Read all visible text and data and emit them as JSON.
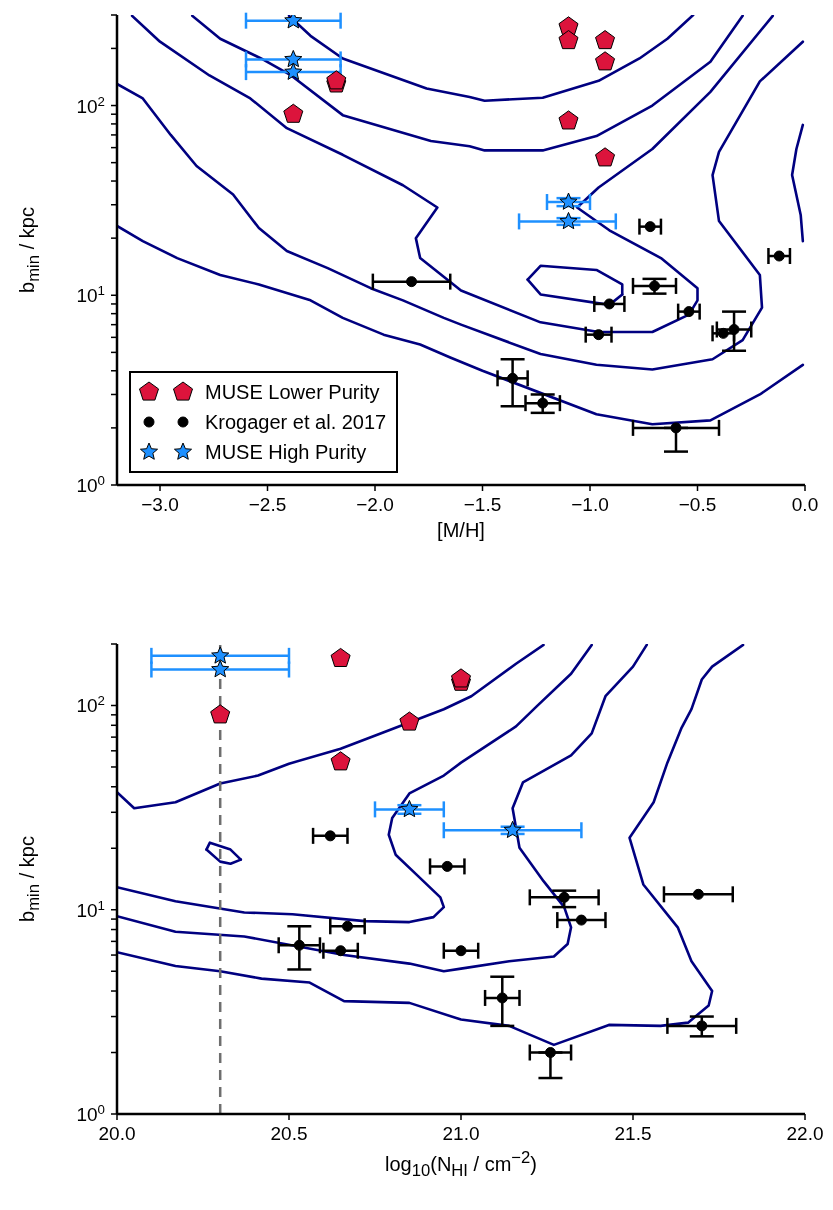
{
  "chart_data": [
    {
      "type": "scatter",
      "xlabel": "[M/H]",
      "ylabel": "b$_{min}$ / kpc",
      "log": "y",
      "legend": "bottom left",
      "xlim": [
        -3.2,
        0
      ],
      "xticks": [
        {
          "value": -3,
          "label": "−3.0"
        },
        {
          "value": -2.5,
          "label": "−2.5"
        },
        {
          "value": -2,
          "label": "−2.0"
        },
        {
          "value": -1.5,
          "label": "−1.5"
        },
        {
          "value": -1,
          "label": "−1.0"
        },
        {
          "value": -0.5,
          "label": "−0.5"
        },
        {
          "value": 0,
          "label": "0.0"
        }
      ],
      "ylim": [
        1,
        300
      ],
      "yticks": [
        {
          "value": 1,
          "label": "10$^{0}$"
        },
        {
          "value": 2,
          "label": null
        },
        {
          "value": 3,
          "label": null
        },
        {
          "value": 4,
          "label": null
        },
        {
          "value": 5,
          "label": null
        },
        {
          "value": 6,
          "label": null
        },
        {
          "value": 7,
          "label": null
        },
        {
          "value": 8,
          "label": null
        },
        {
          "value": 9,
          "label": null
        },
        {
          "value": 10,
          "label": "10$^{1}$"
        },
        {
          "value": 20,
          "label": null
        },
        {
          "value": 30,
          "label": null
        },
        {
          "value": 40,
          "label": null
        },
        {
          "value": 50,
          "label": null
        },
        {
          "value": 60,
          "label": null
        },
        {
          "value": 70,
          "label": null
        },
        {
          "value": 80,
          "label": null
        },
        {
          "value": 90,
          "label": null
        },
        {
          "value": 100,
          "label": "10$^{2}$"
        },
        {
          "value": 200,
          "label": null
        },
        {
          "value": 300,
          "label": null
        }
      ],
      "series": [
        {
          "name": "MUSE Lower Purity",
          "color": "#dc143c",
          "x": [
            -2.38,
            -2.18,
            -2.18,
            -1.1,
            -1.1,
            -0.93,
            -0.93,
            -1.1,
            -0.93
          ],
          "values": [
            90,
            130,
            135,
            260,
            220,
            220,
            170,
            83,
            53
          ]
        },
        {
          "name": "Krogager et al. 2017",
          "marker": "circle",
          "color": "#000000",
          "x": [
            -1.83,
            -0.72,
            -0.12,
            -0.7,
            -0.91,
            -0.54,
            -0.96,
            -0.38,
            -0.33,
            -1.36,
            -1.22,
            -0.6
          ],
          "values": [
            11.8,
            23,
            16.1,
            11.2,
            9,
            8.2,
            6.2,
            6.3,
            6.6,
            3.65,
            2.7,
            2.0
          ],
          "xerrors": [
            [
              -2.01,
              -1.65
            ],
            [
              -0.77,
              -0.67
            ],
            [
              -0.17,
              -0.07
            ],
            [
              -0.8,
              -0.6
            ],
            [
              -0.98,
              -0.84
            ],
            [
              -0.59,
              -0.49
            ],
            [
              -1.02,
              -0.9
            ],
            [
              -0.43,
              -0.33
            ],
            [
              -0.41,
              -0.25
            ],
            [
              -1.43,
              -1.29
            ],
            [
              -1.3,
              -1.14
            ],
            [
              -0.8,
              -0.4
            ]
          ],
          "errors": [
            null,
            null,
            null,
            [
              10.2,
              12.2
            ],
            null,
            null,
            null,
            null,
            [
              5.1,
              8.2
            ],
            [
              2.6,
              4.6
            ],
            [
              2.4,
              3.0
            ],
            [
              1.5,
              2.0
            ]
          ]
        },
        {
          "name": "MUSE High Purity",
          "marker": "star",
          "color": "#1e90ff",
          "x": [
            -2.38,
            -2.38,
            -2.38,
            -1.1,
            -1.1
          ],
          "values": [
            280,
            175,
            150,
            31,
            24.5
          ],
          "xerrors": [
            [
              -2.6,
              -2.16
            ],
            [
              -2.6,
              -2.16
            ],
            [
              -2.6,
              -2.16
            ],
            [
              -1.2,
              -1.0
            ],
            [
              -1.33,
              -0.88
            ]
          ],
          "errors": [
            null,
            null,
            null,
            [
              29.5,
              32.5
            ],
            [
              23.5,
              25.5
            ]
          ]
        },
        {
          "type": "line",
          "marker": "none",
          "color": "#000080",
          "x": [
            -2.4,
            -2.3,
            -2.15,
            -1.76,
            -1.56,
            -1.49,
            -1.22,
            -0.96,
            -0.77,
            -0.64,
            -0.52
          ],
          "values": [
            297,
            233,
            177,
            123,
            111,
            106,
            110,
            135,
            177,
            225,
            300
          ]
        },
        {
          "type": "line",
          "marker": "none",
          "color": "#000080",
          "x": [
            -2.85,
            -2.72,
            -2.53,
            -2.39,
            -2.15,
            -1.74,
            -1.56,
            -1.49,
            -1.22,
            -0.97,
            -0.71,
            -0.44,
            -0.29
          ],
          "values": [
            297,
            225,
            177,
            144,
            89,
            65,
            61,
            58,
            58,
            69,
            100,
            170,
            297
          ]
        },
        {
          "type": "line",
          "marker": "none",
          "color": "#000080",
          "x": [
            -3.13,
            -3.0,
            -2.77,
            -2.58,
            -2.41,
            -2.15,
            -1.87,
            -1.71,
            -1.81,
            -1.79,
            -1.6,
            -1.23,
            -0.96,
            -0.71,
            -0.54,
            -0.5,
            -0.5,
            -0.67,
            -0.91,
            -1.06,
            -0.96,
            -0.71,
            -0.44,
            -0.15
          ],
          "values": [
            297,
            217,
            144,
            109,
            76,
            55,
            38,
            29,
            20,
            15.7,
            10.6,
            7.2,
            6.4,
            6.4,
            7.9,
            9.4,
            10.9,
            15.7,
            22,
            29,
            37,
            59,
            118,
            297
          ]
        },
        {
          "type": "line",
          "marker": "none",
          "color": "#000080",
          "x": [
            -1.29,
            -1.23,
            -0.97,
            -0.85,
            -0.85
          ],
          "values": [
            12.1,
            14.3,
            13.6,
            11.4,
            10.1
          ]
        },
        {
          "type": "line",
          "marker": "none",
          "color": "#000080",
          "x": [
            -1.29,
            -1.23,
            -0.91,
            -0.85
          ],
          "values": [
            12.1,
            10.1,
            8.9,
            10.1
          ]
        },
        {
          "type": "line",
          "marker": "none",
          "color": "#000080",
          "x": [
            -3.2,
            -3.08,
            -2.95,
            -2.83,
            -2.66,
            -2.54,
            -2.41,
            -2.22,
            -2.02,
            -1.87,
            -1.68,
            -1.6,
            -1.23,
            -0.97,
            -0.71,
            -0.43,
            -0.29,
            -0.2,
            -0.21,
            -0.4,
            -0.43,
            -0.4,
            -0.21,
            -0.01
          ],
          "values": [
            130,
            109,
            70,
            48,
            34,
            22.6,
            17.1,
            13.9,
            10.9,
            9.4,
            7.6,
            7.0,
            4.9,
            4.3,
            4.06,
            4.6,
            5.8,
            8.6,
            12.8,
            24.6,
            43,
            57,
            134,
            217
          ]
        },
        {
          "type": "line",
          "marker": "none",
          "color": "#000080",
          "x": [
            -0.01,
            -0.02,
            -0.06,
            -0.04,
            -0.01
          ],
          "values": [
            19.3,
            26.5,
            43,
            59,
            79
          ]
        },
        {
          "type": "line",
          "marker": "none",
          "color": "#000080",
          "x": [
            -3.2,
            -3.08,
            -2.92,
            -2.72,
            -2.54,
            -2.3,
            -2.15,
            -1.96,
            -1.79,
            -1.65,
            -1.5,
            -0.97,
            -0.71,
            -0.44,
            -0.21,
            -0.01
          ],
          "values": [
            23.2,
            19.3,
            15.7,
            12.8,
            11.4,
            9.4,
            7.6,
            6.2,
            5.5,
            4.7,
            4.0,
            2.36,
            2.09,
            2.19,
            3.0,
            4.3
          ]
        }
      ]
    },
    {
      "type": "scatter",
      "xlabel": "log$_{10}$(N$_{HI}$ / cm$^{−2}$)",
      "ylabel": "b$_{min}$ / kpc",
      "log": "y",
      "xlim": [
        20,
        22
      ],
      "xticks": [
        {
          "value": 20,
          "label": "20.0"
        },
        20.5,
        {
          "value": 21,
          "label": "21.0"
        },
        21.5,
        {
          "value": 22,
          "label": "22.0"
        }
      ],
      "ylim": [
        1,
        200
      ],
      "yticks": [
        {
          "value": 1,
          "label": "10$^{0}$"
        },
        {
          "value": 2,
          "label": null
        },
        {
          "value": 3,
          "label": null
        },
        {
          "value": 4,
          "label": null
        },
        {
          "value": 5,
          "label": null
        },
        {
          "value": 6,
          "label": null
        },
        {
          "value": 7,
          "label": null
        },
        {
          "value": 8,
          "label": null
        },
        {
          "value": 9,
          "label": null
        },
        {
          "value": 10,
          "label": "10$^{1}$"
        },
        {
          "value": 20,
          "label": null
        },
        {
          "value": 30,
          "label": null
        },
        {
          "value": 40,
          "label": null
        },
        {
          "value": 50,
          "label": null
        },
        {
          "value": 60,
          "label": null
        },
        {
          "value": 70,
          "label": null
        },
        {
          "value": 80,
          "label": null
        },
        {
          "value": 90,
          "label": null
        },
        {
          "value": 100,
          "label": "10$^{2}$"
        },
        {
          "value": 200,
          "label": null
        }
      ],
      "ref_lines": [
        {
          "axis": "x",
          "value": 20.3,
          "color": "#6e6e6e",
          "line_style": "dashed"
        }
      ],
      "series": [
        {
          "type": "line",
          "marker": "none",
          "color": "#000080",
          "x": [
            20.0,
            20.05,
            20.17,
            20.3,
            20.41,
            20.5,
            20.65,
            20.77,
            20.95,
            21.03,
            21.16,
            21.24
          ],
          "values": [
            37.6,
            31.4,
            33.6,
            41.5,
            45.4,
            51.9,
            61.4,
            73.3,
            95.9,
            111,
            160,
            198
          ]
        },
        {
          "type": "line",
          "marker": "none",
          "color": "#000080",
          "x": [
            21.38,
            21.32,
            21.22,
            21.16,
            21.0,
            20.95,
            20.85,
            20.8,
            20.79,
            20.81,
            20.87,
            20.94,
            20.95,
            20.92,
            20.85,
            20.72,
            20.51,
            20.37,
            20.17,
            20.0
          ],
          "values": [
            198,
            143,
            99,
            79,
            52.5,
            45.4,
            37.1,
            28.1,
            23.3,
            18.6,
            14.9,
            11.5,
            10.3,
            9.2,
            8.7,
            8.8,
            9.5,
            9.7,
            11.0,
            12.9
          ]
        },
        {
          "type": "line",
          "marker": "none",
          "color": "#000080",
          "x": [
            21.54,
            21.5,
            21.42,
            21.38,
            21.32,
            21.18,
            21.15,
            21.17,
            21.24,
            21.3,
            21.32,
            21.31,
            21.27,
            21.14,
            21.0,
            20.95,
            20.85,
            20.66,
            20.37,
            20.17,
            20.0
          ],
          "values": [
            198,
            155,
            111,
            73,
            57,
            42,
            31.4,
            20.1,
            13.8,
            10.3,
            8.2,
            6.8,
            5.9,
            5.6,
            5.15,
            5.0,
            5.45,
            6.0,
            7.4,
            7.8,
            9.3
          ]
        },
        {
          "type": "line",
          "marker": "none",
          "color": "#000080",
          "x": [
            21.82,
            21.73,
            21.7,
            21.67,
            21.64,
            21.6,
            21.56,
            21.49,
            21.53,
            21.63,
            21.67,
            21.73,
            21.72,
            21.66,
            21.58,
            21.43,
            21.27,
            21.14,
            21.0,
            20.85,
            20.66,
            20.56,
            20.42,
            20.3,
            20.17,
            20.0
          ],
          "values": [
            198,
            155,
            134,
            96,
            77,
            52.5,
            33.6,
            22.5,
            13.3,
            8.2,
            5.6,
            4.0,
            3.4,
            2.8,
            2.7,
            2.73,
            2.18,
            2.7,
            2.9,
            3.5,
            3.57,
            4.4,
            4.6,
            5.0,
            5.3,
            6.2
          ]
        },
        {
          "type": "line",
          "marker": "none",
          "color": "#000080",
          "x": [
            20.26,
            20.27,
            20.33,
            20.36
          ],
          "values": [
            19.7,
            21.3,
            19.7,
            17.6
          ]
        },
        {
          "type": "line",
          "marker": "none",
          "color": "#000080",
          "x": [
            20.26,
            20.3,
            20.33,
            20.36
          ],
          "values": [
            19.7,
            17.2,
            16.8,
            17.6
          ]
        },
        {
          "color": "#dc143c",
          "x": [
            20.3,
            20.65,
            21.0,
            21.0,
            20.85,
            20.65
          ],
          "values": [
            90,
            170,
            130,
            135,
            83,
            53
          ]
        },
        {
          "marker": "circle",
          "color": "#000000",
          "x": [
            20.62,
            20.96,
            20.67,
            20.53,
            20.65,
            21.0,
            21.3,
            21.35,
            21.69,
            21.12,
            21.7,
            21.26
          ],
          "values": [
            23,
            16.3,
            8.3,
            6.7,
            6.3,
            6.3,
            11.5,
            8.9,
            11.9,
            3.7,
            2.7,
            2.0
          ],
          "xerrors": [
            [
              20.57,
              20.67
            ],
            [
              20.91,
              21.01
            ],
            [
              20.62,
              20.72
            ],
            [
              20.47,
              20.59
            ],
            [
              20.6,
              20.7
            ],
            [
              20.95,
              21.05
            ],
            [
              21.2,
              21.4
            ],
            [
              21.28,
              21.42
            ],
            [
              21.59,
              21.79
            ],
            [
              21.07,
              21.17
            ],
            [
              21.6,
              21.8
            ],
            [
              21.2,
              21.32
            ]
          ],
          "errors": [
            null,
            null,
            null,
            [
              5.1,
              8.3
            ],
            null,
            null,
            [
              10.3,
              12.4
            ],
            null,
            null,
            [
              2.7,
              4.7
            ],
            [
              2.4,
              3.0
            ],
            [
              1.5,
              2.0
            ]
          ]
        },
        {
          "marker": "star",
          "color": "#1e90ff",
          "x": [
            20.3,
            20.3,
            20.85,
            21.15
          ],
          "values": [
            175,
            150,
            31,
            24.5
          ],
          "xerrors": [
            [
              20.1,
              20.5
            ],
            [
              20.1,
              20.5
            ],
            [
              20.75,
              20.95
            ],
            [
              20.95,
              21.35
            ]
          ],
          "errors": [
            null,
            null,
            [
              29.5,
              32.5
            ],
            [
              23.5,
              25.5
            ]
          ]
        }
      ]
    }
  ]
}
